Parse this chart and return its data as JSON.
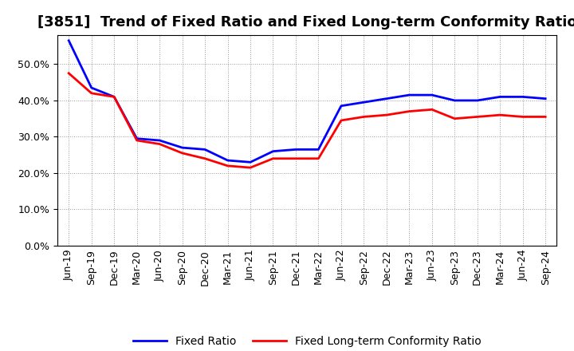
{
  "title": "[3851]  Trend of Fixed Ratio and Fixed Long-term Conformity Ratio",
  "x_labels": [
    "Jun-19",
    "Sep-19",
    "Dec-19",
    "Mar-20",
    "Jun-20",
    "Sep-20",
    "Dec-20",
    "Mar-21",
    "Jun-21",
    "Sep-21",
    "Dec-21",
    "Mar-22",
    "Jun-22",
    "Sep-22",
    "Dec-22",
    "Mar-23",
    "Jun-23",
    "Sep-23",
    "Dec-23",
    "Mar-24",
    "Jun-24",
    "Sep-24"
  ],
  "fixed_ratio": [
    56.5,
    43.5,
    41.0,
    29.5,
    29.0,
    27.0,
    26.5,
    23.5,
    23.0,
    26.0,
    26.5,
    26.5,
    38.5,
    39.5,
    40.5,
    41.5,
    41.5,
    40.0,
    40.0,
    41.0,
    41.0,
    40.5
  ],
  "fixed_lt_ratio": [
    47.5,
    42.0,
    41.0,
    29.0,
    28.0,
    25.5,
    24.0,
    22.0,
    21.5,
    24.0,
    24.0,
    24.0,
    34.5,
    35.5,
    36.0,
    37.0,
    37.5,
    35.0,
    35.5,
    36.0,
    35.5,
    35.5
  ],
  "fixed_ratio_color": "#0000FF",
  "fixed_lt_ratio_color": "#FF0000",
  "ylim": [
    0,
    58
  ],
  "yticks": [
    0,
    10,
    20,
    30,
    40,
    50
  ],
  "grid_color": "#999999",
  "background_color": "#ffffff",
  "plot_bg_color": "#ffffff",
  "legend_fixed_ratio": "Fixed Ratio",
  "legend_fixed_lt_ratio": "Fixed Long-term Conformity Ratio",
  "line_width": 2.0,
  "title_fontsize": 13,
  "tick_fontsize": 9,
  "legend_fontsize": 10
}
